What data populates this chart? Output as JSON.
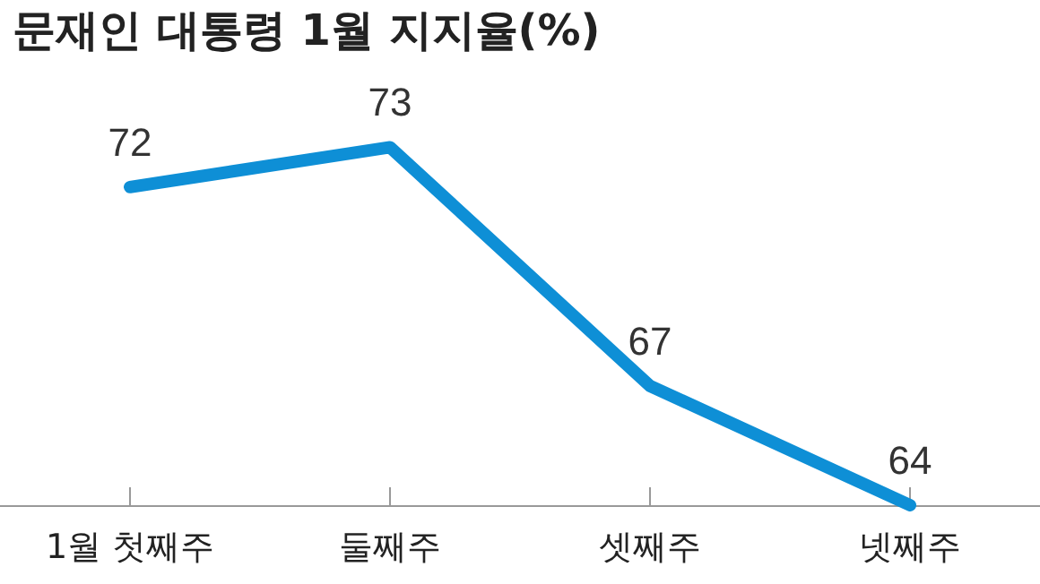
{
  "chart_data": {
    "type": "line",
    "title": "문재인 대통령 1월 지지율(%)",
    "categories": [
      "1월 첫째주",
      "둘째주",
      "셋째주",
      "넷째주"
    ],
    "series": [
      {
        "color": "#0e8fd6",
        "values": [
          72,
          73,
          67,
          64
        ]
      }
    ],
    "tick_labels": "x",
    "data_labels": true,
    "marker": "none",
    "line_style": "solid",
    "grid": false
  }
}
